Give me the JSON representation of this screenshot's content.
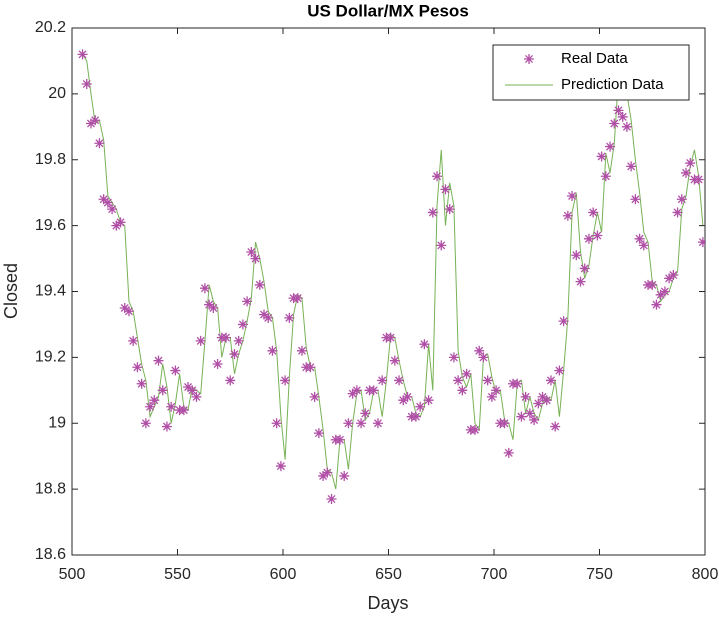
{
  "chart_data": {
    "type": "line",
    "title": "US Dollar/MX Pesos",
    "x_label": "Days",
    "y_label": "Closed",
    "xlim": [
      500,
      800
    ],
    "xticks": [
      500,
      550,
      600,
      650,
      700,
      750,
      800
    ],
    "ylim": [
      18.6,
      20.2
    ],
    "yticks": [
      18.6,
      18.8,
      19,
      19.2,
      19.4,
      19.6,
      19.8,
      20,
      20.2
    ],
    "legend": "upper right",
    "grid": false,
    "x": [
      505,
      507,
      509,
      511,
      513,
      515,
      517,
      519,
      521,
      523,
      525,
      527,
      529,
      531,
      533,
      535,
      537,
      539,
      541,
      543,
      545,
      547,
      549,
      551,
      553,
      555,
      557,
      559,
      561,
      563,
      565,
      567,
      569,
      571,
      573,
      575,
      577,
      579,
      581,
      583,
      585,
      587,
      589,
      591,
      593,
      595,
      597,
      599,
      601,
      603,
      605,
      607,
      609,
      611,
      613,
      615,
      617,
      619,
      621,
      623,
      625,
      627,
      629,
      631,
      633,
      635,
      637,
      639,
      641,
      643,
      645,
      647,
      649,
      651,
      653,
      655,
      657,
      659,
      661,
      663,
      665,
      667,
      669,
      671,
      673,
      675,
      677,
      679,
      681,
      683,
      685,
      687,
      689,
      691,
      693,
      695,
      697,
      699,
      701,
      703,
      705,
      707,
      709,
      711,
      713,
      715,
      717,
      719,
      721,
      723,
      725,
      727,
      729,
      731,
      733,
      735,
      737,
      739,
      741,
      743,
      745,
      747,
      749,
      751,
      753,
      755,
      757,
      759,
      761,
      763,
      765,
      767,
      769,
      771,
      773,
      775,
      777,
      779,
      781,
      783,
      785,
      787,
      789,
      791,
      793,
      795,
      797,
      799
    ],
    "series": [
      {
        "name": "Real Data",
        "color": "#b04fa6",
        "marker": "asterisk",
        "values": [
          20.12,
          20.03,
          19.91,
          19.92,
          19.85,
          19.68,
          19.67,
          19.65,
          19.6,
          19.61,
          19.35,
          19.34,
          19.25,
          19.17,
          19.12,
          19.0,
          19.05,
          19.07,
          19.19,
          19.1,
          18.99,
          19.05,
          19.16,
          19.04,
          19.04,
          19.11,
          19.1,
          19.08,
          19.25,
          19.41,
          19.36,
          19.35,
          19.18,
          19.26,
          19.26,
          19.13,
          19.21,
          19.25,
          19.3,
          19.37,
          19.52,
          19.5,
          19.42,
          19.33,
          19.32,
          19.22,
          19.0,
          18.87,
          19.13,
          19.32,
          19.38,
          19.38,
          19.22,
          19.17,
          19.17,
          19.08,
          18.97,
          18.84,
          18.85,
          18.77,
          18.95,
          18.95,
          18.84,
          19.0,
          19.09,
          19.1,
          19.0,
          19.03,
          19.1,
          19.1,
          19.0,
          19.13,
          19.26,
          19.26,
          19.19,
          19.13,
          19.07,
          19.08,
          19.02,
          19.02,
          19.05,
          19.24,
          19.07,
          19.64,
          19.75,
          19.54,
          19.71,
          19.65,
          19.2,
          19.13,
          19.1,
          19.15,
          18.98,
          18.98,
          19.22,
          19.2,
          19.13,
          19.08,
          19.1,
          19.0,
          19.0,
          18.91,
          19.12,
          19.12,
          19.02,
          19.08,
          19.03,
          19.01,
          19.06,
          19.08,
          19.07,
          19.13,
          18.99,
          19.16,
          19.31,
          19.63,
          19.69,
          19.51,
          19.43,
          19.47,
          19.56,
          19.64,
          19.57,
          19.81,
          19.75,
          19.84,
          19.91,
          19.95,
          19.93,
          19.9,
          19.78,
          19.68,
          19.56,
          19.54,
          19.42,
          19.42,
          19.36,
          19.39,
          19.4,
          19.44,
          19.45,
          19.64,
          19.68,
          19.76,
          19.79,
          19.74,
          19.74,
          19.55
        ]
      },
      {
        "name": "Prediction Data",
        "color": "#77b255",
        "marker": "line",
        "values": [
          20.12,
          20.1,
          20.0,
          19.91,
          19.92,
          19.86,
          19.69,
          19.67,
          19.65,
          19.61,
          19.6,
          19.37,
          19.34,
          19.26,
          19.18,
          19.13,
          19.02,
          19.05,
          19.08,
          19.18,
          19.11,
          19.0,
          19.06,
          19.15,
          19.05,
          19.04,
          19.11,
          19.1,
          19.09,
          19.25,
          19.42,
          19.37,
          19.35,
          19.2,
          19.26,
          19.26,
          19.15,
          19.21,
          19.25,
          19.31,
          19.38,
          19.55,
          19.5,
          19.43,
          19.34,
          19.32,
          19.22,
          19.02,
          18.89,
          19.14,
          19.33,
          19.39,
          19.38,
          19.23,
          19.17,
          19.17,
          19.08,
          18.98,
          18.86,
          18.85,
          18.8,
          18.95,
          18.95,
          18.86,
          19.0,
          19.09,
          19.1,
          19.01,
          19.03,
          19.1,
          19.1,
          19.02,
          19.13,
          19.27,
          19.26,
          19.19,
          19.13,
          19.08,
          19.08,
          19.03,
          19.02,
          19.05,
          19.24,
          19.1,
          19.66,
          19.83,
          19.6,
          19.73,
          19.66,
          19.22,
          19.14,
          19.11,
          19.15,
          19.0,
          18.98,
          19.2,
          19.21,
          19.14,
          19.09,
          19.1,
          19.01,
          19.0,
          18.95,
          19.12,
          19.13,
          19.03,
          19.08,
          19.03,
          19.01,
          19.06,
          19.08,
          19.07,
          19.13,
          19.02,
          19.16,
          19.32,
          19.64,
          19.7,
          19.52,
          19.44,
          19.48,
          19.57,
          19.64,
          19.58,
          19.82,
          19.76,
          19.85,
          20.05,
          20.1,
          20.0,
          19.92,
          19.8,
          19.7,
          19.58,
          19.55,
          19.43,
          19.42,
          19.37,
          19.39,
          19.4,
          19.44,
          19.46,
          19.65,
          19.69,
          19.78,
          19.83,
          19.75,
          19.6
        ]
      }
    ]
  }
}
